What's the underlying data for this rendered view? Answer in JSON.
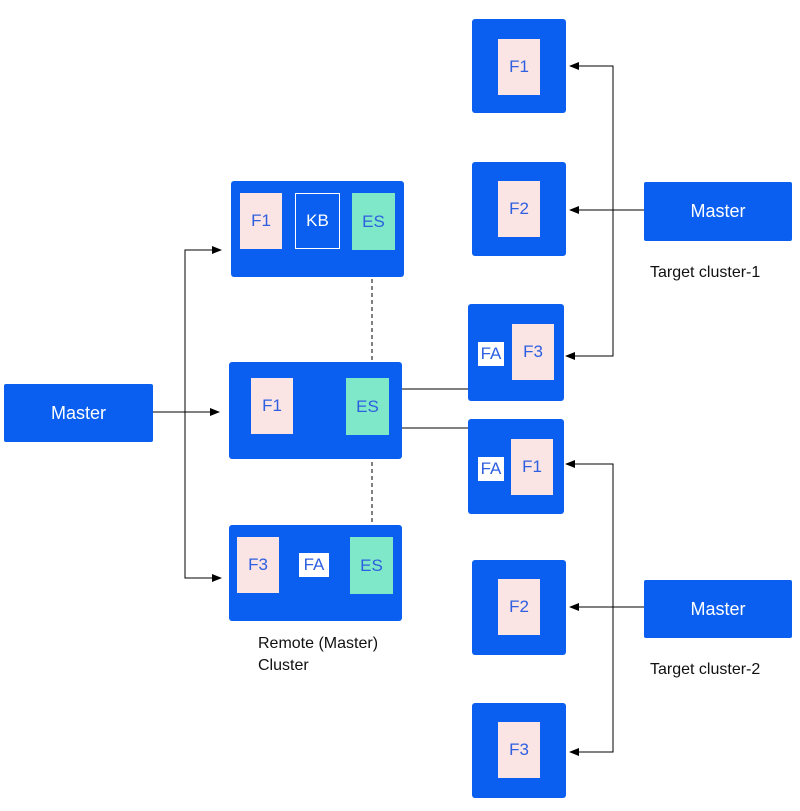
{
  "colors": {
    "node_blue": "#0a5ff0",
    "chip_pink": "#fbe4e4",
    "chip_green": "#7ee8c8",
    "chip_text": "#2d5fe0",
    "line": "#000000"
  },
  "left_master": {
    "label": "Master"
  },
  "remote": {
    "node1": {
      "chips": [
        "F1",
        "KB",
        "ES"
      ]
    },
    "node2": {
      "chips": [
        "F1",
        "ES"
      ]
    },
    "node3": {
      "chips": [
        "F3",
        "FA",
        "ES"
      ]
    },
    "caption_line1": "Remote (Master)",
    "caption_line2": "Cluster"
  },
  "target1": {
    "master_label": "Master",
    "caption": "Target cluster-1",
    "nodes": [
      {
        "chips": [
          "F1"
        ]
      },
      {
        "chips": [
          "F2"
        ]
      },
      {
        "chips": [
          "FA",
          "F3"
        ]
      }
    ]
  },
  "target2": {
    "master_label": "Master",
    "caption": "Target cluster-2",
    "nodes": [
      {
        "chips": [
          "FA",
          "F1"
        ]
      },
      {
        "chips": [
          "F2"
        ]
      },
      {
        "chips": [
          "F3"
        ]
      }
    ]
  }
}
